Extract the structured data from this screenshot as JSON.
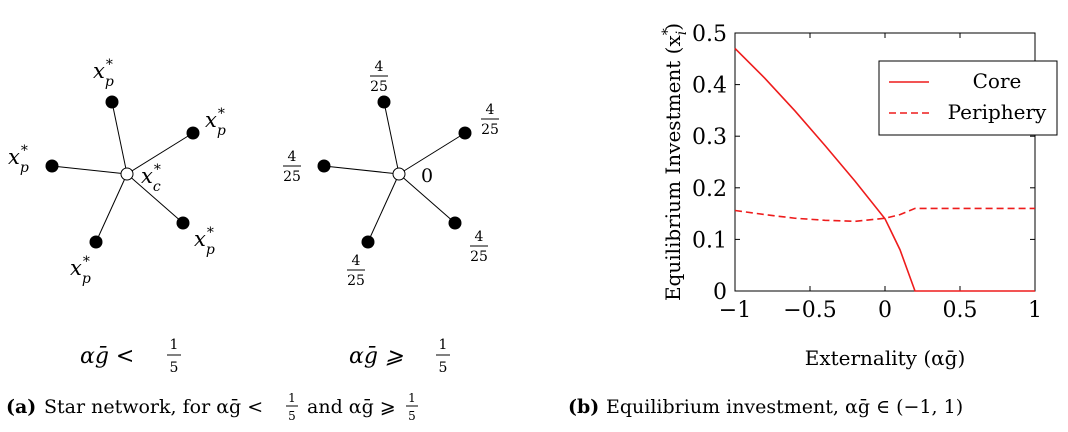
{
  "panel_a": {
    "network_left": {
      "periphery_label": "x",
      "periphery_sup": "*",
      "periphery_sub": "p",
      "core_label": "x",
      "core_sup": "*",
      "core_sub": "c"
    },
    "network_right": {
      "frac_num": "4",
      "frac_den": "25",
      "core_value": "0"
    },
    "condition_left": {
      "lhs": "αḡ <",
      "num": "1",
      "den": "5"
    },
    "condition_right": {
      "lhs": "αḡ ⩾",
      "num": "1",
      "den": "5"
    },
    "caption": {
      "tag": "(a)",
      "text1": "Star network, for αḡ <",
      "num1": "1",
      "den1": "5",
      "text2": "and αḡ ⩾",
      "num2": "1",
      "den2": "5"
    }
  },
  "panel_b": {
    "caption": {
      "tag": "(b)",
      "text": "Equilibrium investment, αḡ ∈ (−1, 1)"
    }
  },
  "chart_data": {
    "type": "line",
    "xlabel": "Externality (αḡ)",
    "ylabel": "Equilibrium Investment (x",
    "ylabel_sup": "*",
    "ylabel_sub": "i",
    "ylabel_close": ")",
    "xlim": [
      -1,
      1
    ],
    "ylim": [
      0,
      0.5
    ],
    "xticks": [
      -1,
      -0.5,
      0,
      0.5,
      1
    ],
    "xtick_labels": [
      "−1",
      "−0.5",
      "0",
      "0.5",
      "1"
    ],
    "yticks": [
      0,
      0.1,
      0.2,
      0.3,
      0.4,
      0.5
    ],
    "ytick_labels": [
      "0",
      "0.1",
      "0.2",
      "0.3",
      "0.4",
      "0.5"
    ],
    "grid": false,
    "legend_position": "top-right",
    "series": [
      {
        "name": "Core",
        "style": "solid",
        "color": "#ee1c1c",
        "x": [
          -1,
          -0.8,
          -0.6,
          -0.4,
          -0.2,
          0,
          0.1,
          0.2,
          0.3,
          0.5,
          0.7,
          1
        ],
        "y": [
          0.47,
          0.412,
          0.349,
          0.282,
          0.213,
          0.14,
          0.08,
          0,
          0,
          0,
          0,
          0
        ]
      },
      {
        "name": "Periphery",
        "style": "dashed",
        "color": "#ee1c1c",
        "x": [
          -1,
          -0.8,
          -0.6,
          -0.4,
          -0.2,
          0,
          0.1,
          0.2,
          0.3,
          0.5,
          0.7,
          1
        ],
        "y": [
          0.156,
          0.148,
          0.141,
          0.137,
          0.135,
          0.141,
          0.148,
          0.16,
          0.16,
          0.16,
          0.16,
          0.16
        ]
      }
    ]
  }
}
